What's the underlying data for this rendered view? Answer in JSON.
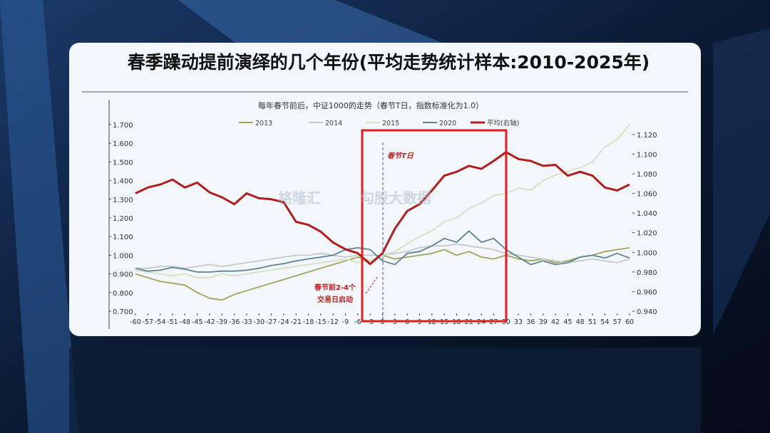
{
  "chart_data": {
    "type": "line",
    "card_title": "春季躁动提前演绎的几个年份(平均走势统计样本:2010-2025年)",
    "title": "每年春节前后，中证1000的走势（春节T日，指数标准化为1.0）",
    "annotations": [
      "春节T日",
      "春节前2-4个",
      "交易日启动"
    ],
    "watermarks": [
      "格隆汇",
      "勾股大数据"
    ],
    "x": [
      -60,
      -57,
      -54,
      -51,
      -48,
      -45,
      -42,
      -39,
      -36,
      -33,
      -30,
      -27,
      -24,
      -21,
      -18,
      -15,
      -12,
      -9,
      -6,
      -3,
      0,
      3,
      6,
      9,
      12,
      15,
      18,
      21,
      24,
      27,
      30,
      33,
      36,
      39,
      42,
      45,
      48,
      51,
      54,
      57,
      60
    ],
    "xlim": [
      -60,
      60
    ],
    "xticks": [
      -60,
      -57,
      -54,
      -51,
      -48,
      -45,
      -42,
      -39,
      -36,
      -33,
      -30,
      -27,
      -24,
      -21,
      -18,
      -15,
      -12,
      -9,
      -6,
      -3,
      0,
      3,
      6,
      9,
      12,
      15,
      18,
      21,
      24,
      27,
      30,
      33,
      36,
      39,
      42,
      45,
      48,
      51,
      54,
      57,
      60
    ],
    "ylim": [
      0.7,
      1.7
    ],
    "yticks": [
      {
        "value": 0.7,
        "label": "0.700"
      },
      {
        "value": 0.8,
        "label": "0.800"
      },
      {
        "value": 0.9,
        "label": "0.900"
      },
      {
        "value": 1.0,
        "label": "1.000"
      },
      {
        "value": 1.1,
        "label": "1.100"
      },
      {
        "value": 1.2,
        "label": "1.200"
      },
      {
        "value": 1.3,
        "label": "1.300"
      },
      {
        "value": 1.4,
        "label": "1.400"
      },
      {
        "value": 1.5,
        "label": "1.500"
      },
      {
        "value": 1.6,
        "label": "1.600"
      },
      {
        "value": 1.7,
        "label": "1.700"
      }
    ],
    "y2lim": [
      0.94,
      1.13
    ],
    "y2ticks": [
      {
        "value": 0.94,
        "label": "0.940"
      },
      {
        "value": 0.96,
        "label": "0.960"
      },
      {
        "value": 0.98,
        "label": "0.980"
      },
      {
        "value": 1.0,
        "label": "1.000"
      },
      {
        "value": 1.02,
        "label": "1.020"
      },
      {
        "value": 1.04,
        "label": "1.040"
      },
      {
        "value": 1.06,
        "label": "1.060"
      },
      {
        "value": 1.08,
        "label": "1.080"
      },
      {
        "value": 1.1,
        "label": "1.100"
      },
      {
        "value": 1.12,
        "label": "1.120"
      }
    ],
    "grid": false,
    "series": [
      {
        "name": "2013",
        "color": "#a3a35a",
        "values": [
          0.9,
          0.88,
          0.86,
          0.85,
          0.84,
          0.8,
          0.77,
          0.76,
          0.79,
          0.81,
          0.83,
          0.85,
          0.87,
          0.89,
          0.91,
          0.93,
          0.95,
          0.97,
          0.99,
          0.97,
          1.0,
          0.98,
          0.99,
          1.0,
          1.01,
          1.03,
          1.0,
          1.02,
          0.99,
          0.98,
          1.0,
          0.98,
          0.97,
          0.98,
          0.96,
          0.97,
          0.99,
          1.0,
          1.02,
          1.03,
          1.04
        ]
      },
      {
        "name": "2014",
        "color": "#c5cbc6",
        "values": [
          0.93,
          0.93,
          0.94,
          0.94,
          0.93,
          0.94,
          0.95,
          0.94,
          0.95,
          0.96,
          0.97,
          0.98,
          0.99,
          1.0,
          1.0,
          1.01,
          1.0,
          0.99,
          1.0,
          1.0,
          1.0,
          1.01,
          1.02,
          1.04,
          1.05,
          1.05,
          1.06,
          1.05,
          1.04,
          1.03,
          1.01,
          1.0,
          0.99,
          0.98,
          0.97,
          0.96,
          0.97,
          0.98,
          0.97,
          0.96,
          0.98
        ]
      },
      {
        "name": "2015",
        "color": "#d3e2c2",
        "values": [
          0.92,
          0.91,
          0.9,
          0.89,
          0.9,
          0.88,
          0.88,
          0.9,
          0.89,
          0.9,
          0.91,
          0.92,
          0.93,
          0.94,
          0.95,
          0.96,
          0.97,
          0.98,
          0.96,
          0.97,
          1.0,
          1.02,
          1.06,
          1.1,
          1.13,
          1.18,
          1.2,
          1.25,
          1.28,
          1.32,
          1.33,
          1.36,
          1.35,
          1.4,
          1.43,
          1.45,
          1.47,
          1.5,
          1.58,
          1.62,
          1.7
        ]
      },
      {
        "name": "2020",
        "color": "#5d8490",
        "values": [
          0.93,
          0.915,
          0.92,
          0.935,
          0.925,
          0.91,
          0.91,
          0.915,
          0.915,
          0.92,
          0.93,
          0.945,
          0.955,
          0.97,
          0.98,
          0.99,
          1.0,
          1.03,
          1.04,
          1.03,
          0.97,
          0.95,
          1.01,
          1.02,
          1.05,
          1.09,
          1.07,
          1.13,
          1.07,
          1.09,
          1.03,
          0.99,
          0.95,
          0.97,
          0.95,
          0.96,
          0.99,
          1.0,
          0.985,
          1.01,
          0.985
        ]
      },
      {
        "name": "平均(右轴)",
        "color": "#b01e1e",
        "axis": "y2",
        "values": [
          1.06,
          1.066,
          1.069,
          1.074,
          1.066,
          1.071,
          1.061,
          1.056,
          1.049,
          1.06,
          1.055,
          1.054,
          1.051,
          1.031,
          1.028,
          1.021,
          1.01,
          1.003,
          0.999,
          0.988,
          0.999,
          1.024,
          1.042,
          1.049,
          1.063,
          1.078,
          1.082,
          1.088,
          1.085,
          1.093,
          1.102,
          1.095,
          1.093,
          1.088,
          1.089,
          1.078,
          1.082,
          1.078,
          1.066,
          1.063,
          1.069
        ]
      }
    ]
  }
}
